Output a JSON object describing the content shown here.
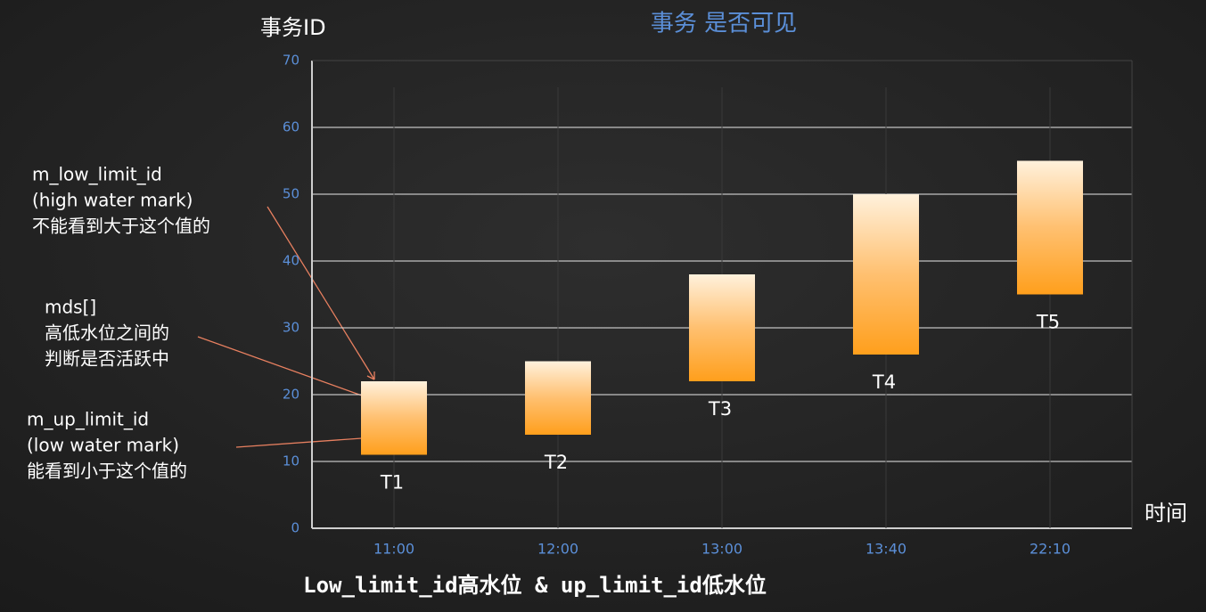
{
  "chart_data": {
    "type": "range-bar",
    "title": "事务 是否可见",
    "y_label": "事务ID",
    "x_label": "时间",
    "footer": "Low_limit_id高水位 & up_limit_id低水位",
    "categories": [
      "11:00",
      "12:00",
      "13:00",
      "13:40",
      "22:10"
    ],
    "bar_labels": [
      "T1",
      "T2",
      "T3",
      "T4",
      "T5"
    ],
    "low": [
      11,
      14,
      22,
      26,
      35
    ],
    "high": [
      22,
      25,
      38,
      50,
      55
    ],
    "ylim": [
      0,
      70
    ],
    "yticks": [
      0,
      10,
      20,
      30,
      40,
      50,
      60,
      70
    ],
    "grid": true,
    "annotations": [
      [
        "m_low_limit_id",
        "(high water mark)",
        "不能看到大于这个值的"
      ],
      [
        "mds[]",
        "高低水位之间的",
        "判断是否活跃中"
      ],
      [
        "m_up_limit_id",
        "(low water mark)",
        "能看到小于这个值的"
      ]
    ]
  }
}
